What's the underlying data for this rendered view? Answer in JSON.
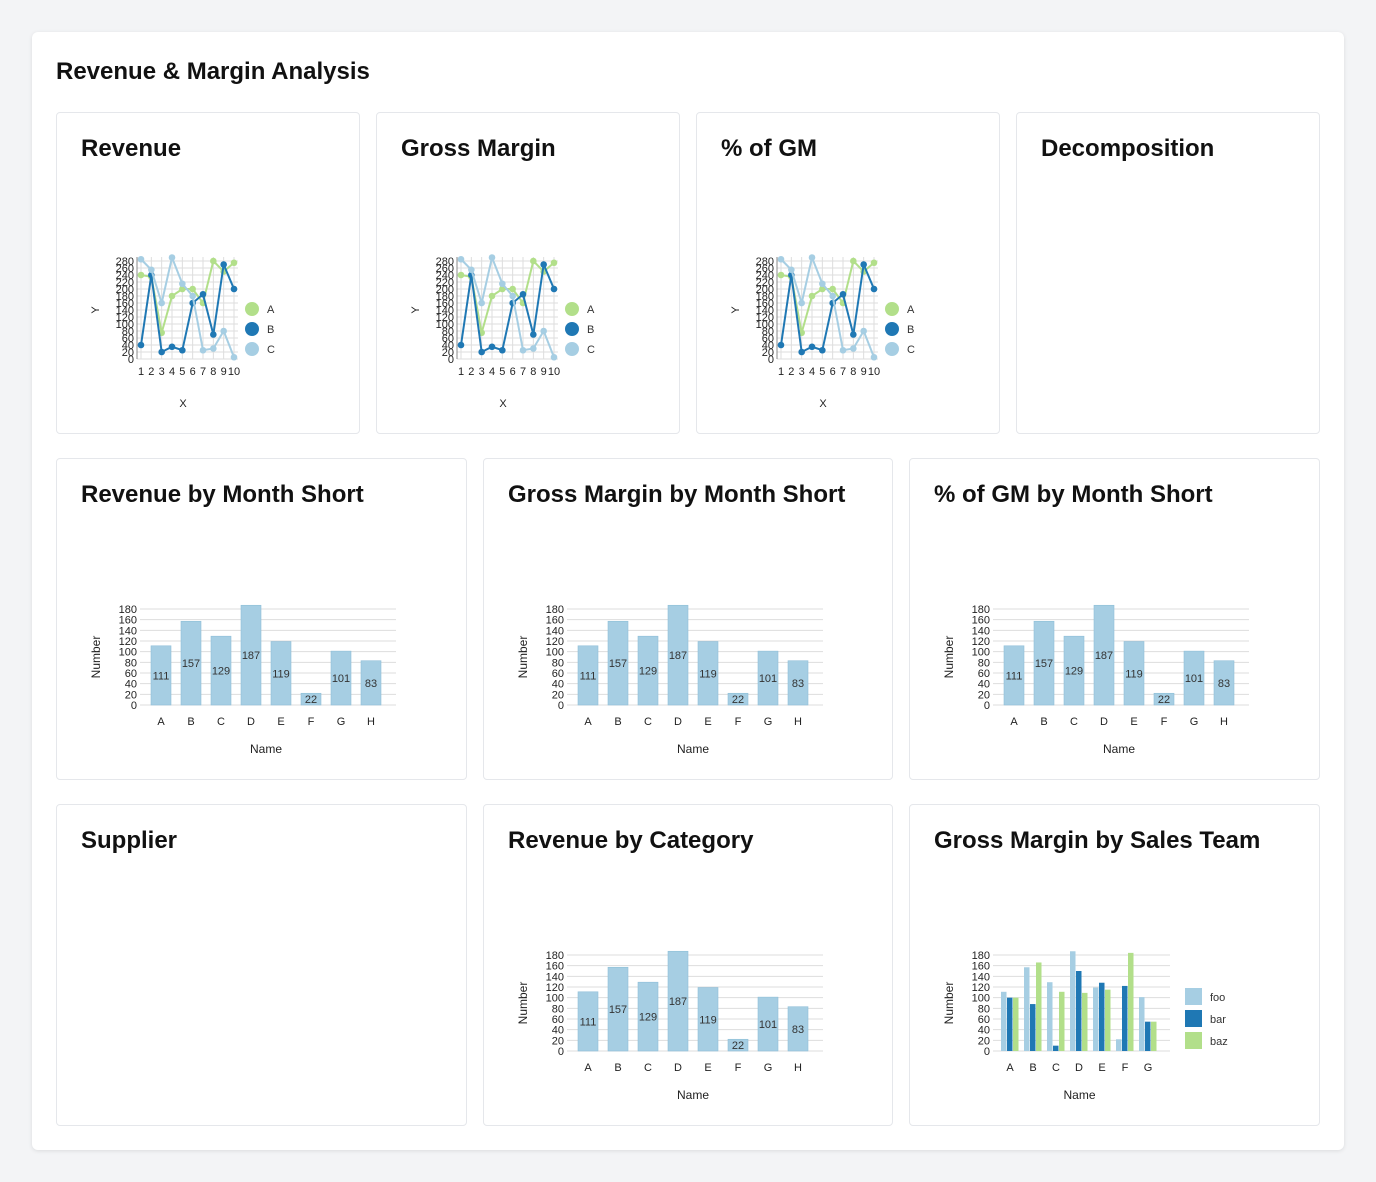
{
  "dashboard": {
    "title": "Revenue & Margin Analysis"
  },
  "colors": {
    "series_light": "#a6cee3",
    "series_dark": "#1f78b4",
    "series_green": "#b2df8a",
    "grid": "#dddddd",
    "axis": "#888888"
  },
  "panels": {
    "revenue": {
      "title": "Revenue"
    },
    "gross_margin": {
      "title": "Gross Margin"
    },
    "pct_gm": {
      "title": "% of GM"
    },
    "decomposition": {
      "title": "Decomposition"
    },
    "revenue_month": {
      "title": "Revenue by Month Short"
    },
    "gm_month": {
      "title": "Gross Margin by Month Short"
    },
    "pct_gm_month": {
      "title": "% of GM by Month Short"
    },
    "supplier": {
      "title": "Supplier"
    },
    "revenue_category": {
      "title": "Revenue by Category"
    },
    "gm_sales_team": {
      "title": "Gross Margin by Sales Team"
    }
  },
  "chart_data": [
    {
      "id": "revenue",
      "type": "line",
      "xlabel": "X",
      "ylabel": "Y",
      "x": [
        1,
        2,
        3,
        4,
        5,
        6,
        7,
        8,
        9,
        10
      ],
      "ylim": [
        0,
        280
      ],
      "yticks": [
        0,
        20,
        40,
        60,
        80,
        100,
        120,
        140,
        160,
        180,
        200,
        220,
        240,
        260,
        280
      ],
      "series": [
        {
          "name": "A",
          "color": "#b2df8a",
          "values": [
            240,
            235,
            75,
            180,
            200,
            200,
            160,
            280,
            250,
            275
          ]
        },
        {
          "name": "B",
          "color": "#1f78b4",
          "values": [
            40,
            240,
            20,
            35,
            25,
            160,
            185,
            70,
            270,
            200
          ]
        },
        {
          "name": "C",
          "color": "#a6cee3",
          "values": [
            285,
            255,
            160,
            290,
            215,
            180,
            25,
            30,
            80,
            5
          ]
        }
      ],
      "legend_position": "right"
    },
    {
      "id": "gross_margin",
      "type": "line",
      "xlabel": "X",
      "ylabel": "Y",
      "x": [
        1,
        2,
        3,
        4,
        5,
        6,
        7,
        8,
        9,
        10
      ],
      "ylim": [
        0,
        280
      ],
      "yticks": [
        0,
        20,
        40,
        60,
        80,
        100,
        120,
        140,
        160,
        180,
        200,
        220,
        240,
        260,
        280
      ],
      "series": [
        {
          "name": "A",
          "color": "#b2df8a",
          "values": [
            240,
            235,
            75,
            180,
            200,
            200,
            160,
            280,
            250,
            275
          ]
        },
        {
          "name": "B",
          "color": "#1f78b4",
          "values": [
            40,
            240,
            20,
            35,
            25,
            160,
            185,
            70,
            270,
            200
          ]
        },
        {
          "name": "C",
          "color": "#a6cee3",
          "values": [
            285,
            255,
            160,
            290,
            215,
            180,
            25,
            30,
            80,
            5
          ]
        }
      ],
      "legend_position": "right"
    },
    {
      "id": "pct_gm",
      "type": "line",
      "xlabel": "X",
      "ylabel": "Y",
      "x": [
        1,
        2,
        3,
        4,
        5,
        6,
        7,
        8,
        9,
        10
      ],
      "ylim": [
        0,
        280
      ],
      "yticks": [
        0,
        20,
        40,
        60,
        80,
        100,
        120,
        140,
        160,
        180,
        200,
        220,
        240,
        260,
        280
      ],
      "series": [
        {
          "name": "A",
          "color": "#b2df8a",
          "values": [
            240,
            235,
            75,
            180,
            200,
            200,
            160,
            280,
            250,
            275
          ]
        },
        {
          "name": "B",
          "color": "#1f78b4",
          "values": [
            40,
            240,
            20,
            35,
            25,
            160,
            185,
            70,
            270,
            200
          ]
        },
        {
          "name": "C",
          "color": "#a6cee3",
          "values": [
            285,
            255,
            160,
            290,
            215,
            180,
            25,
            30,
            80,
            5
          ]
        }
      ],
      "legend_position": "right"
    },
    {
      "id": "revenue_month",
      "type": "bar",
      "xlabel": "Name",
      "ylabel": "Number",
      "categories": [
        "A",
        "B",
        "C",
        "D",
        "E",
        "F",
        "G",
        "H"
      ],
      "values": [
        111,
        157,
        129,
        187,
        119,
        22,
        101,
        83
      ],
      "ylim": [
        0,
        180
      ],
      "yticks": [
        0,
        20,
        40,
        60,
        80,
        100,
        120,
        140,
        160,
        180
      ],
      "data_labels": true
    },
    {
      "id": "gm_month",
      "type": "bar",
      "xlabel": "Name",
      "ylabel": "Number",
      "categories": [
        "A",
        "B",
        "C",
        "D",
        "E",
        "F",
        "G",
        "H"
      ],
      "values": [
        111,
        157,
        129,
        187,
        119,
        22,
        101,
        83
      ],
      "ylim": [
        0,
        180
      ],
      "yticks": [
        0,
        20,
        40,
        60,
        80,
        100,
        120,
        140,
        160,
        180
      ],
      "data_labels": true
    },
    {
      "id": "pct_gm_month",
      "type": "bar",
      "xlabel": "Name",
      "ylabel": "Number",
      "categories": [
        "A",
        "B",
        "C",
        "D",
        "E",
        "F",
        "G",
        "H"
      ],
      "values": [
        111,
        157,
        129,
        187,
        119,
        22,
        101,
        83
      ],
      "ylim": [
        0,
        180
      ],
      "yticks": [
        0,
        20,
        40,
        60,
        80,
        100,
        120,
        140,
        160,
        180
      ],
      "data_labels": true
    },
    {
      "id": "revenue_category",
      "type": "bar",
      "xlabel": "Name",
      "ylabel": "Number",
      "categories": [
        "A",
        "B",
        "C",
        "D",
        "E",
        "F",
        "G",
        "H"
      ],
      "values": [
        111,
        157,
        129,
        187,
        119,
        22,
        101,
        83
      ],
      "ylim": [
        0,
        180
      ],
      "yticks": [
        0,
        20,
        40,
        60,
        80,
        100,
        120,
        140,
        160,
        180
      ],
      "data_labels": true
    },
    {
      "id": "gm_sales_team",
      "type": "bar",
      "xlabel": "Name",
      "ylabel": "Number",
      "categories": [
        "A",
        "B",
        "C",
        "D",
        "E",
        "F",
        "G"
      ],
      "series": [
        {
          "name": "foo",
          "color": "#a6cee3",
          "values": [
            111,
            157,
            129,
            187,
            119,
            22,
            101
          ]
        },
        {
          "name": "bar",
          "color": "#1f78b4",
          "values": [
            100,
            88,
            10,
            150,
            128,
            122,
            55
          ]
        },
        {
          "name": "baz",
          "color": "#b2df8a",
          "values": [
            100,
            166,
            111,
            109,
            115,
            184,
            55
          ]
        }
      ],
      "ylim": [
        0,
        180
      ],
      "yticks": [
        0,
        20,
        40,
        60,
        80,
        100,
        120,
        140,
        160,
        180
      ],
      "legend_position": "right"
    }
  ]
}
